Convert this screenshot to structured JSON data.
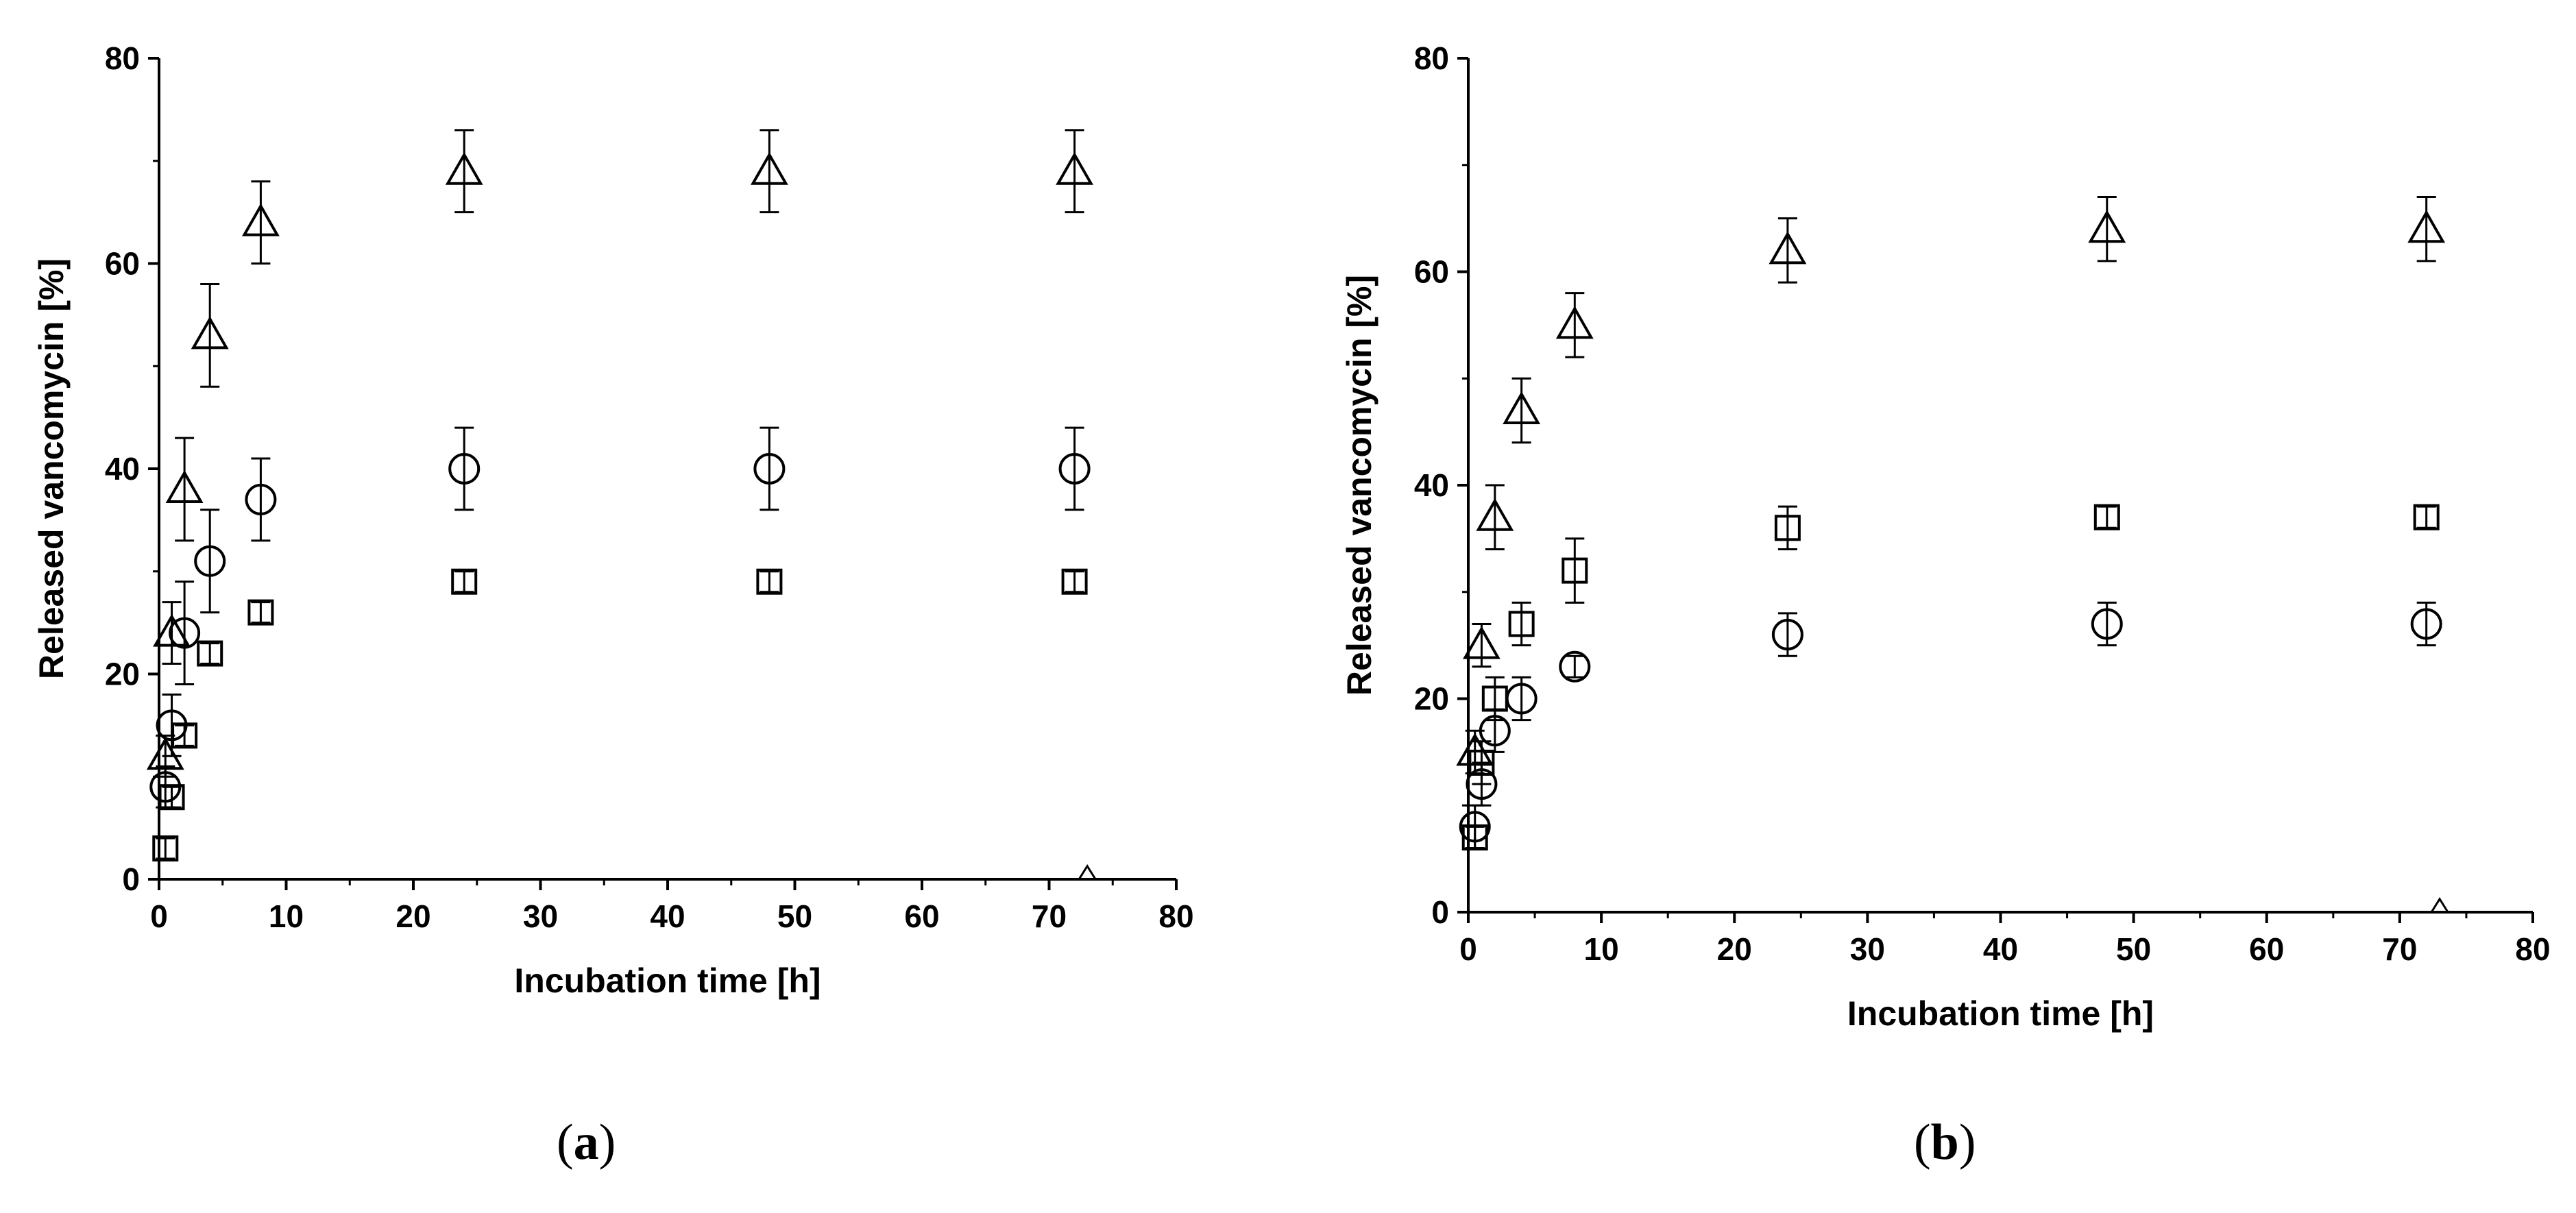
{
  "chart_data": [
    {
      "panel": "(a)",
      "caption_letter": "a",
      "type": "scatter",
      "xlabel": "Incubation time [h]",
      "ylabel": "Released vancomycin [%]",
      "xlim": [
        0,
        80
      ],
      "ylim": [
        0,
        80
      ],
      "xticks": [
        0,
        10,
        20,
        30,
        40,
        50,
        60,
        70,
        80
      ],
      "yticks": [
        0,
        20,
        40,
        60,
        80
      ],
      "grid": false,
      "series": [
        {
          "marker": "triangle",
          "x": [
            0.5,
            1,
            2,
            4,
            8,
            24,
            48,
            72
          ],
          "y": [
            12,
            24,
            38,
            53,
            64,
            69,
            69,
            69
          ],
          "err": [
            2,
            3,
            5,
            5,
            4,
            4,
            4,
            4
          ]
        },
        {
          "marker": "circle",
          "x": [
            0.5,
            1,
            2,
            4,
            8,
            24,
            48,
            72
          ],
          "y": [
            9,
            15,
            24,
            31,
            37,
            40,
            40,
            40
          ],
          "err": [
            2,
            3,
            5,
            5,
            4,
            4,
            4,
            4
          ]
        },
        {
          "marker": "square",
          "x": [
            0.5,
            1,
            2,
            4,
            8,
            24,
            48,
            72
          ],
          "y": [
            3,
            8,
            14,
            22,
            26,
            29,
            29,
            29
          ],
          "err": [
            1,
            1,
            1,
            1,
            1,
            1,
            1,
            1
          ]
        }
      ],
      "stray_mark": {
        "marker": "triangle",
        "x": 73,
        "y": 0
      }
    },
    {
      "panel": "(b)",
      "caption_letter": "b",
      "type": "scatter",
      "xlabel": "Incubation time [h]",
      "ylabel": "Released vancomycin [%]",
      "xlim": [
        0,
        80
      ],
      "ylim": [
        0,
        80
      ],
      "xticks": [
        0,
        10,
        20,
        30,
        40,
        50,
        60,
        70,
        80
      ],
      "yticks": [
        0,
        20,
        40,
        60,
        80
      ],
      "grid": false,
      "series": [
        {
          "marker": "triangle",
          "x": [
            0.5,
            1,
            2,
            4,
            8,
            24,
            48,
            72
          ],
          "y": [
            15,
            25,
            37,
            47,
            55,
            62,
            64,
            64
          ],
          "err": [
            2,
            2,
            3,
            3,
            3,
            3,
            3,
            3
          ]
        },
        {
          "marker": "square",
          "x": [
            0.5,
            1,
            2,
            4,
            8,
            24,
            48,
            72
          ],
          "y": [
            7,
            14,
            20,
            27,
            32,
            36,
            37,
            37
          ],
          "err": [
            1,
            2,
            2,
            2,
            3,
            2,
            1,
            1
          ]
        },
        {
          "marker": "circle",
          "x": [
            0.5,
            1,
            2,
            4,
            8,
            24,
            48,
            72
          ],
          "y": [
            8,
            12,
            17,
            20,
            23,
            26,
            27,
            27
          ],
          "err": [
            2,
            2,
            2,
            2,
            1,
            2,
            2,
            2
          ]
        }
      ],
      "stray_mark": {
        "marker": "triangle",
        "x": 73,
        "y": 0
      }
    }
  ]
}
